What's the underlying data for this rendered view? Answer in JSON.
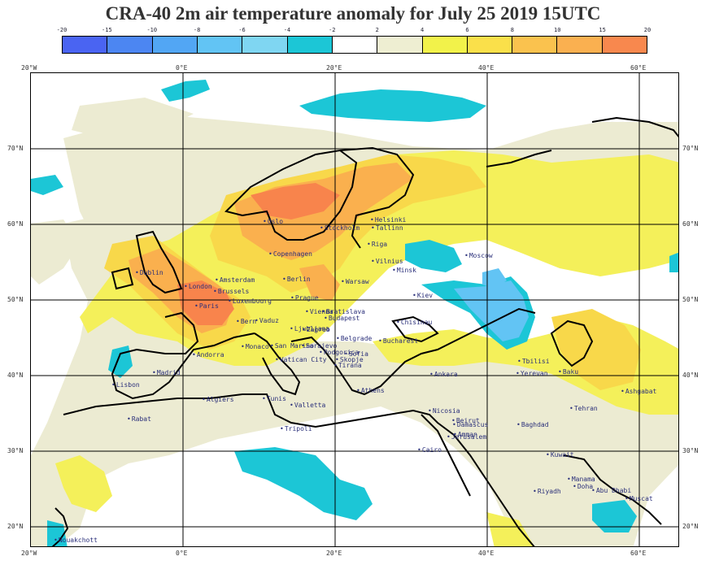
{
  "title": "CRA-40 2m air temperature anomaly for July 25 2019 15UTC",
  "colorbar": {
    "ticks": [
      "-20",
      "-15",
      "-10",
      "-8",
      "-6",
      "-4",
      "-2",
      "2",
      "4",
      "6",
      "8",
      "10",
      "15",
      "20"
    ],
    "colors": [
      "#4a64f2",
      "#4c86f2",
      "#52a6f4",
      "#62c4f4",
      "#7fd6f2",
      "#1cc6d6",
      "#ffffff",
      "#eeeed2",
      "#f2f24a",
      "#fae04a",
      "#fac24e",
      "#fab050",
      "#f8884e"
    ]
  },
  "map": {
    "top_lon_labels": [
      "20°W",
      "0°E",
      "20°E",
      "40°E",
      "60°E"
    ],
    "bottom_lon_labels": [
      "20°W",
      "0°E",
      "20°E",
      "40°E",
      "60°E"
    ],
    "lat_labels": [
      "70°N",
      "60°N",
      "50°N",
      "40°N",
      "30°N",
      "20°N"
    ],
    "cities": [
      {
        "name": "Oslo"
      },
      {
        "name": "Stockholm"
      },
      {
        "name": "Helsinki"
      },
      {
        "name": "Tallinn"
      },
      {
        "name": "Riga"
      },
      {
        "name": "Copenhagen"
      },
      {
        "name": "Vilnius"
      },
      {
        "name": "Minsk"
      },
      {
        "name": "Moscow"
      },
      {
        "name": "Dublin"
      },
      {
        "name": "London"
      },
      {
        "name": "Amsterdam"
      },
      {
        "name": "Brussels"
      },
      {
        "name": "Berlin"
      },
      {
        "name": "Warsaw"
      },
      {
        "name": "Luxembourg"
      },
      {
        "name": "Paris"
      },
      {
        "name": "Prague"
      },
      {
        "name": "Kiev"
      },
      {
        "name": "Vienna"
      },
      {
        "name": "Bratislava"
      },
      {
        "name": "Budapest"
      },
      {
        "name": "Chisinau"
      },
      {
        "name": "Bern"
      },
      {
        "name": "Vaduz"
      },
      {
        "name": "Ljubljana"
      },
      {
        "name": "Zagreb"
      },
      {
        "name": "Belgrade"
      },
      {
        "name": "Bucharest"
      },
      {
        "name": "Monaco"
      },
      {
        "name": "San Marino"
      },
      {
        "name": "Sarajevo"
      },
      {
        "name": "Andorra"
      },
      {
        "name": "Vatican City"
      },
      {
        "name": "Podgorica"
      },
      {
        "name": "Sofia"
      },
      {
        "name": "Skopje"
      },
      {
        "name": "Tirana"
      },
      {
        "name": "Madrid"
      },
      {
        "name": "Ankara"
      },
      {
        "name": "Tbilisi"
      },
      {
        "name": "Yerevan"
      },
      {
        "name": "Baku"
      },
      {
        "name": "Lisbon"
      },
      {
        "name": "Athens"
      },
      {
        "name": "Algiers"
      },
      {
        "name": "Tunis"
      },
      {
        "name": "Valletta"
      },
      {
        "name": "Ashgabat"
      },
      {
        "name": "Tehran"
      },
      {
        "name": "Nicosia"
      },
      {
        "name": "Beirut"
      },
      {
        "name": "Damascus"
      },
      {
        "name": "Amman"
      },
      {
        "name": "Jerusalem"
      },
      {
        "name": "Baghdad"
      },
      {
        "name": "Rabat"
      },
      {
        "name": "Tripoli"
      },
      {
        "name": "Cairo"
      },
      {
        "name": "Kuwait"
      },
      {
        "name": "Manama"
      },
      {
        "name": "Doha"
      },
      {
        "name": "Abu Dhabi"
      },
      {
        "name": "Muscat"
      },
      {
        "name": "Riyadh"
      },
      {
        "name": "Nouakchott"
      }
    ]
  }
}
